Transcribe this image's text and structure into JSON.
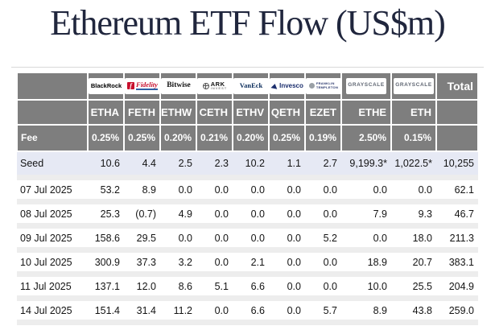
{
  "title": "Ethereum ETF Flow (US$m)",
  "colors": {
    "header_bg": "#7e7e7e",
    "seed_row_bg": "#e6e9f4",
    "negative_text": "#e60000",
    "title_text": "#20263d",
    "row_separator": "#ededed"
  },
  "chart_data": {
    "type": "table",
    "title": "Ethereum ETF Flow (US$m)",
    "providers": [
      {
        "id": "blackrock",
        "label": "BlackRock"
      },
      {
        "id": "fidelity",
        "label": "Fidelity"
      },
      {
        "id": "bitwise",
        "label": "Bitwise"
      },
      {
        "id": "ark",
        "label": "ARK",
        "sublabel": "INVEST"
      },
      {
        "id": "vaneck",
        "label": "VanEck"
      },
      {
        "id": "invesco",
        "label": "Invesco"
      },
      {
        "id": "franklin",
        "label": "FRANKLIN",
        "sublabel": "TEMPLETON"
      },
      {
        "id": "grayscale",
        "label": "GRAYSCALE"
      },
      {
        "id": "grayscale2",
        "label": "GRAYSCALE"
      },
      {
        "id": "total",
        "label": "Total"
      }
    ],
    "tickers": [
      "ETHA",
      "FETH",
      "ETHW",
      "CETH",
      "ETHV",
      "QETH",
      "EZET",
      "ETHE",
      "ETH",
      ""
    ],
    "fee": {
      "label": "Fee",
      "values": [
        "0.25%",
        "0.25%",
        "0.20%",
        "0.21%",
        "0.20%",
        "0.25%",
        "0.19%",
        "2.50%",
        "0.15%",
        ""
      ]
    },
    "seed": {
      "label": "Seed",
      "values": [
        "10.6",
        "4.4",
        "2.5",
        "2.3",
        "10.2",
        "1.1",
        "2.7",
        "9,199.3*",
        "1,022.5*",
        "10,255"
      ]
    },
    "rows": [
      {
        "date": "07 Jul 2025",
        "values": [
          "53.2",
          "8.9",
          "0.0",
          "0.0",
          "0.0",
          "0.0",
          "0.0",
          "0.0",
          "0.0",
          "62.1"
        ]
      },
      {
        "date": "08 Jul 2025",
        "values": [
          "25.3",
          "(0.7)",
          "4.9",
          "0.0",
          "0.0",
          "0.0",
          "0.0",
          "7.9",
          "9.3",
          "46.7"
        ]
      },
      {
        "date": "09 Jul 2025",
        "values": [
          "158.6",
          "29.5",
          "0.0",
          "0.0",
          "0.0",
          "0.0",
          "5.2",
          "0.0",
          "18.0",
          "211.3"
        ]
      },
      {
        "date": "10 Jul 2025",
        "values": [
          "300.9",
          "37.3",
          "3.2",
          "0.0",
          "2.1",
          "0.0",
          "0.0",
          "18.9",
          "20.7",
          "383.1"
        ]
      },
      {
        "date": "11 Jul 2025",
        "values": [
          "137.1",
          "12.0",
          "8.6",
          "5.1",
          "6.6",
          "0.0",
          "0.0",
          "10.0",
          "25.5",
          "204.9"
        ]
      },
      {
        "date": "14 Jul 2025",
        "values": [
          "151.4",
          "31.4",
          "11.2",
          "0.0",
          "6.6",
          "0.0",
          "5.7",
          "8.9",
          "43.8",
          "259.0"
        ]
      }
    ]
  }
}
